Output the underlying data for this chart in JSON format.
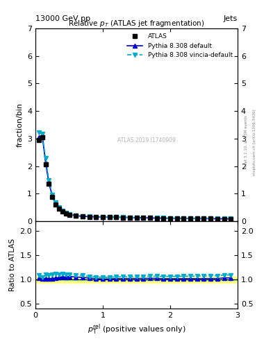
{
  "title": "Relative $p_{T}$ (ATLAS jet fragmentation)",
  "header_left": "13000 GeV pp",
  "header_right": "Jets",
  "right_label_top": "Rivet 3.1.10, ≥ 3.3M events",
  "right_label_bot": "mcplots.cern.ch [arXiv:1306.3436]",
  "watermark": "ATLAS 2019 I1740909",
  "ylabel_main": "fraction/bin",
  "ylabel_ratio": "Ratio to ATLAS",
  "xlim": [
    0,
    3
  ],
  "ylim_main": [
    0,
    7
  ],
  "ylim_ratio": [
    0.4,
    2.2
  ],
  "yticks_main": [
    0,
    1,
    2,
    3,
    4,
    5,
    6,
    7
  ],
  "yticks_ratio": [
    0.5,
    1.0,
    1.5,
    2.0
  ],
  "xticks": [
    0,
    1,
    2,
    3
  ],
  "data_x": [
    0.05,
    0.1,
    0.15,
    0.2,
    0.25,
    0.3,
    0.35,
    0.4,
    0.45,
    0.5,
    0.6,
    0.7,
    0.8,
    0.9,
    1.0,
    1.1,
    1.2,
    1.3,
    1.4,
    1.5,
    1.6,
    1.7,
    1.8,
    1.9,
    2.0,
    2.1,
    2.2,
    2.3,
    2.4,
    2.5,
    2.6,
    2.7,
    2.8,
    2.9
  ],
  "atlas_y": [
    2.95,
    3.05,
    2.07,
    1.35,
    0.88,
    0.6,
    0.45,
    0.35,
    0.28,
    0.23,
    0.19,
    0.17,
    0.16,
    0.155,
    0.15,
    0.145,
    0.14,
    0.135,
    0.13,
    0.125,
    0.12,
    0.115,
    0.11,
    0.108,
    0.105,
    0.103,
    0.1,
    0.098,
    0.095,
    0.093,
    0.09,
    0.088,
    0.085,
    0.083
  ],
  "pythia_default_y": [
    3.05,
    3.12,
    2.12,
    1.38,
    0.9,
    0.62,
    0.47,
    0.37,
    0.295,
    0.245,
    0.2,
    0.178,
    0.165,
    0.158,
    0.152,
    0.147,
    0.143,
    0.138,
    0.133,
    0.128,
    0.123,
    0.118,
    0.113,
    0.11,
    0.107,
    0.105,
    0.102,
    0.1,
    0.097,
    0.095,
    0.092,
    0.09,
    0.088,
    0.086
  ],
  "pythia_vincia_y": [
    3.22,
    3.18,
    2.28,
    1.48,
    0.97,
    0.67,
    0.5,
    0.39,
    0.31,
    0.255,
    0.208,
    0.185,
    0.17,
    0.163,
    0.157,
    0.152,
    0.148,
    0.143,
    0.138,
    0.133,
    0.128,
    0.123,
    0.118,
    0.115,
    0.112,
    0.11,
    0.107,
    0.105,
    0.102,
    0.1,
    0.097,
    0.095,
    0.093,
    0.091
  ],
  "ratio_default_y": [
    1.03,
    1.02,
    1.024,
    1.022,
    1.023,
    1.033,
    1.044,
    1.057,
    1.054,
    1.065,
    1.053,
    1.047,
    1.031,
    1.019,
    1.013,
    1.014,
    1.021,
    1.022,
    1.023,
    1.024,
    1.025,
    1.026,
    1.027,
    1.019,
    1.019,
    1.019,
    1.02,
    1.02,
    1.021,
    1.022,
    1.022,
    1.022,
    1.035,
    1.036
  ],
  "ratio_vincia_y": [
    1.09,
    1.043,
    1.1,
    1.096,
    1.102,
    1.117,
    1.111,
    1.114,
    1.107,
    1.109,
    1.095,
    1.088,
    1.063,
    1.052,
    1.047,
    1.048,
    1.057,
    1.059,
    1.062,
    1.064,
    1.067,
    1.07,
    1.073,
    1.065,
    1.067,
    1.068,
    1.07,
    1.071,
    1.074,
    1.075,
    1.078,
    1.08,
    1.094,
    1.096
  ],
  "band_green_low": 0.99,
  "band_green_high": 1.01,
  "band_yellow_low": 0.935,
  "band_yellow_high": 1.065,
  "color_atlas": "#000000",
  "color_default": "#0000cc",
  "color_vincia": "#00aacc",
  "color_band_green": "#90ee90",
  "color_band_yellow": "#ffff80",
  "marker_atlas": "s",
  "marker_default": "^",
  "marker_vincia": "v",
  "markersize": 4,
  "linewidth": 1.2
}
